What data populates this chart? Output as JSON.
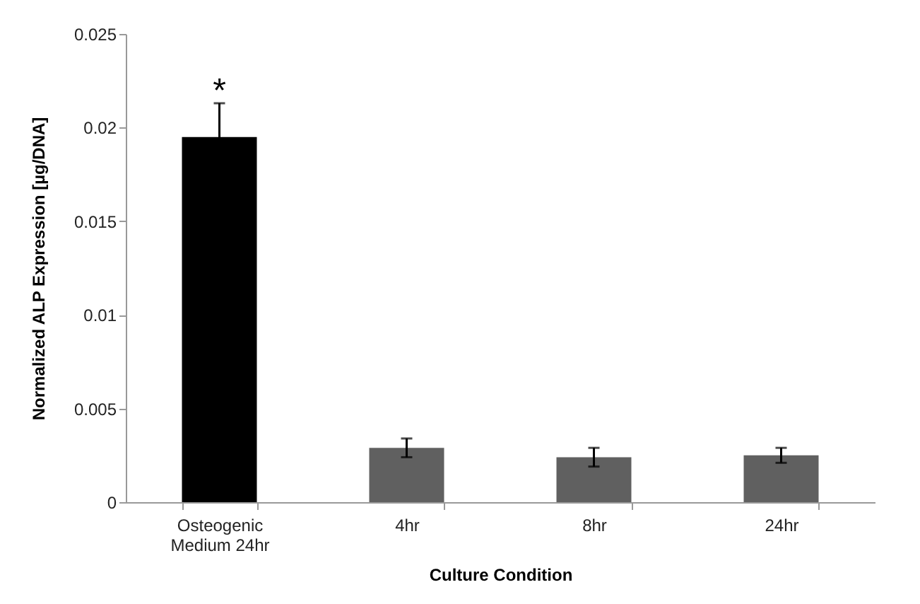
{
  "chart_data": {
    "type": "bar",
    "xlabel": "Culture Condition",
    "ylabel": "Normalized ALP Expression [µg/DNA]",
    "categories": [
      "Osteogenic Medium 24hr",
      "4hr",
      "8hr",
      "24hr"
    ],
    "values": [
      0.0195,
      0.0029,
      0.0024,
      0.0025
    ],
    "errors": [
      0.0018,
      0.0005,
      0.0005,
      0.0004
    ],
    "colors": [
      "#000000",
      "#606060",
      "#606060",
      "#606060"
    ],
    "ylim": [
      0,
      0.025
    ],
    "yticks": [
      0,
      0.005,
      0.01,
      0.015,
      0.02,
      0.025
    ],
    "grid": false,
    "legend": false,
    "annotations": [
      "*"
    ]
  }
}
